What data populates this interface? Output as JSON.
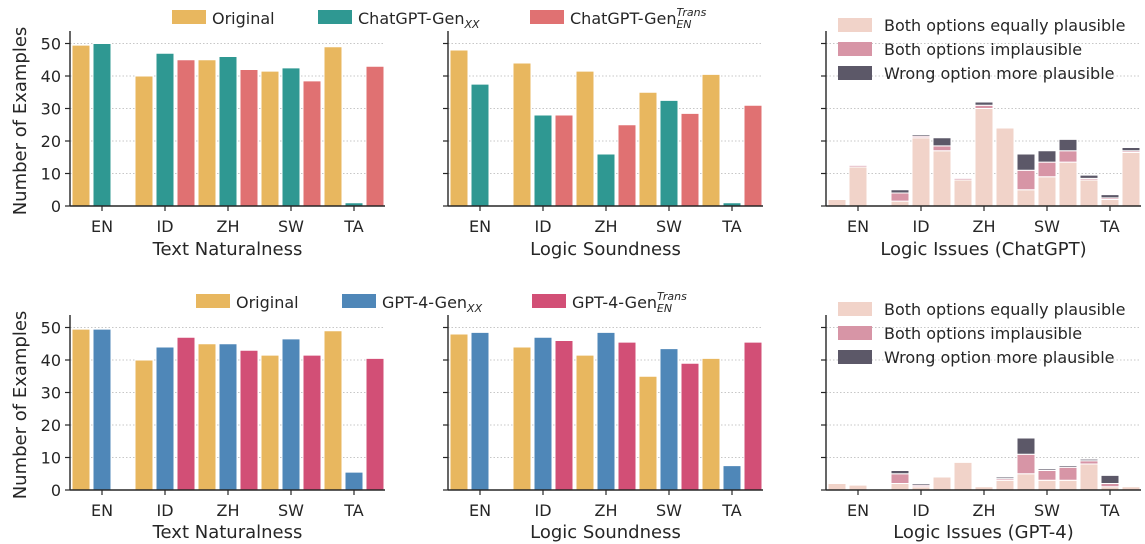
{
  "colors": {
    "original": "#e8b75f",
    "chatgpt": "#2f9892",
    "chatgpt_trans": "#e07172",
    "gpt4": "#4f87b8",
    "gpt4_trans": "#d24f76",
    "equally": "#f1d3c9",
    "implausible": "#d795a6",
    "wrong": "#5c5868"
  },
  "y_axis_label": "Number of Examples",
  "legends": [
    {
      "entries": [
        {
          "label": "Original",
          "sub": "",
          "sup": "",
          "color": "original"
        },
        {
          "label": "ChatGPT-Gen",
          "sub": "XX",
          "sup": "",
          "color": "chatgpt"
        },
        {
          "label": "ChatGPT-Gen",
          "sub": "EN",
          "sup": "Trans",
          "color": "chatgpt_trans"
        }
      ]
    },
    {
      "entries": [
        {
          "label": "Original",
          "sub": "",
          "sup": "",
          "color": "original"
        },
        {
          "label": "GPT-4-Gen",
          "sub": "XX",
          "sup": "",
          "color": "gpt4"
        },
        {
          "label": "GPT-4-Gen",
          "sub": "EN",
          "sup": "Trans",
          "color": "gpt4_trans"
        }
      ]
    }
  ],
  "stack_legend": [
    {
      "label": "Both options equally plausible",
      "color": "equally"
    },
    {
      "label": "Both options implausible",
      "color": "implausible"
    },
    {
      "label": "Wrong option more plausible",
      "color": "wrong"
    }
  ],
  "chart_data": [
    {
      "type": "bar",
      "xlabel": "Text Naturalness",
      "ylabel": "Number of Examples",
      "ylim": [
        0,
        52
      ],
      "yticks": [
        0,
        10,
        20,
        30,
        40,
        50
      ],
      "grid": true,
      "legend": "top",
      "categories": [
        "EN",
        "ID",
        "ZH",
        "SW",
        "TA"
      ],
      "series": [
        {
          "name": "Original",
          "color": "original",
          "values": [
            49.5,
            40,
            45,
            41.5,
            49
          ]
        },
        {
          "name": "ChatGPT-Gen XX",
          "color": "chatgpt",
          "values": [
            50,
            47,
            46,
            42.5,
            1
          ]
        },
        {
          "name": "ChatGPT-Gen EN Trans",
          "color": "chatgpt_trans",
          "values": [
            null,
            45,
            42,
            38.5,
            43
          ]
        }
      ]
    },
    {
      "type": "bar",
      "xlabel": "Logic Soundness",
      "ylim": [
        0,
        52
      ],
      "grid": true,
      "categories": [
        "EN",
        "ID",
        "ZH",
        "SW",
        "TA"
      ],
      "series": [
        {
          "name": "Original",
          "color": "original",
          "values": [
            48,
            44,
            41.5,
            35,
            40.5
          ]
        },
        {
          "name": "ChatGPT-Gen XX",
          "color": "chatgpt",
          "values": [
            37.5,
            28,
            16,
            32.5,
            1
          ]
        },
        {
          "name": "ChatGPT-Gen EN Trans",
          "color": "chatgpt_trans",
          "values": [
            null,
            28,
            25,
            28.5,
            31
          ]
        }
      ]
    },
    {
      "type": "bar",
      "stacked": true,
      "xlabel": "Logic Issues (ChatGPT)",
      "ylim": [
        0,
        52
      ],
      "grid": true,
      "legend": "top-right",
      "categories": [
        "EN",
        "ID",
        "ZH",
        "SW",
        "TA"
      ],
      "groups": [
        [
          [
            2,
            0,
            0
          ],
          [
            12,
            0.5,
            0
          ],
          [
            0,
            0,
            0
          ]
        ],
        [
          [
            1.5,
            2.5,
            1
          ],
          [
            21,
            0.5,
            0.5
          ],
          [
            17,
            1.5,
            2.5
          ]
        ],
        [
          [
            8,
            0.5,
            0
          ],
          [
            30,
            1,
            1
          ],
          [
            24,
            0,
            0
          ]
        ],
        [
          [
            5,
            6,
            5
          ],
          [
            9,
            4.5,
            3.5
          ],
          [
            13.5,
            3.5,
            3.5
          ]
        ],
        [
          [
            8,
            0.5,
            1
          ],
          [
            2,
            0.5,
            1
          ],
          [
            16.5,
            0.5,
            1
          ]
        ]
      ]
    },
    {
      "type": "bar",
      "xlabel": "Text Naturalness",
      "ylabel": "Number of Examples",
      "ylim": [
        0,
        52
      ],
      "yticks": [
        0,
        10,
        20,
        30,
        40,
        50
      ],
      "grid": true,
      "legend": "top",
      "categories": [
        "EN",
        "ID",
        "ZH",
        "SW",
        "TA"
      ],
      "series": [
        {
          "name": "Original",
          "color": "original",
          "values": [
            49.5,
            40,
            45,
            41.5,
            49
          ]
        },
        {
          "name": "GPT-4-Gen XX",
          "color": "gpt4",
          "values": [
            49.5,
            44,
            45,
            46.5,
            5.5
          ]
        },
        {
          "name": "GPT-4-Gen EN Trans",
          "color": "gpt4_trans",
          "values": [
            null,
            47,
            43,
            41.5,
            40.5
          ]
        }
      ]
    },
    {
      "type": "bar",
      "xlabel": "Logic Soundness",
      "ylim": [
        0,
        52
      ],
      "grid": true,
      "categories": [
        "EN",
        "ID",
        "ZH",
        "SW",
        "TA"
      ],
      "series": [
        {
          "name": "Original",
          "color": "original",
          "values": [
            48,
            44,
            41.5,
            35,
            40.5
          ]
        },
        {
          "name": "GPT-4-Gen XX",
          "color": "gpt4",
          "values": [
            48.5,
            47,
            48.5,
            43.5,
            7.5
          ]
        },
        {
          "name": "GPT-4-Gen EN Trans",
          "color": "gpt4_trans",
          "values": [
            null,
            46,
            45.5,
            39,
            45.5
          ]
        }
      ]
    },
    {
      "type": "bar",
      "stacked": true,
      "xlabel": "Logic Issues (GPT-4)",
      "ylim": [
        0,
        52
      ],
      "grid": true,
      "legend": "top-right",
      "categories": [
        "EN",
        "ID",
        "ZH",
        "SW",
        "TA"
      ],
      "groups": [
        [
          [
            2,
            0,
            0
          ],
          [
            1.5,
            0,
            0
          ],
          [
            0,
            0,
            0
          ]
        ],
        [
          [
            2,
            3,
            1
          ],
          [
            1,
            0.5,
            0.5
          ],
          [
            4,
            0,
            0
          ]
        ],
        [
          [
            8.5,
            0,
            0
          ],
          [
            1,
            0,
            0
          ],
          [
            3,
            0.5,
            0.5
          ]
        ],
        [
          [
            5,
            6,
            5
          ],
          [
            3,
            3,
            0.5
          ],
          [
            3,
            4,
            0.5
          ]
        ],
        [
          [
            8,
            1,
            0.5
          ],
          [
            1,
            1,
            2.5
          ],
          [
            1,
            0,
            0
          ]
        ]
      ]
    }
  ]
}
